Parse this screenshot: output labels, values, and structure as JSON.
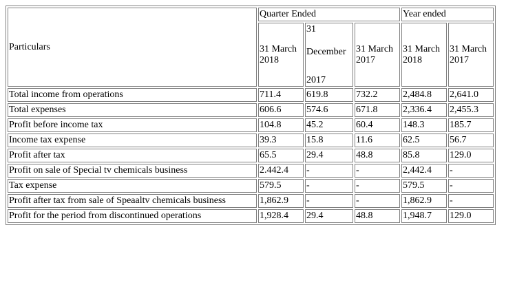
{
  "table": {
    "particulars_header": "Particulars",
    "group_headers": {
      "quarter": "Quarter Ended",
      "year": "Year ended"
    },
    "date_headers": {
      "q1": [
        "31 March",
        "2018"
      ],
      "q2": [
        "31",
        "December",
        "2017"
      ],
      "q3": [
        "31 March",
        "2017"
      ],
      "y1": [
        "31 March",
        "2018"
      ],
      "y2": [
        "31 March",
        "2017"
      ]
    },
    "rows": [
      {
        "label": "Total income from operations",
        "values": [
          "711.4",
          "619.8",
          "732.2",
          "2,484.8",
          "2,641.0"
        ]
      },
      {
        "label": "Total expenses",
        "values": [
          "606.6",
          "574.6",
          "671.8",
          "2,336.4",
          "2,455.3"
        ]
      },
      {
        "label": "Profit before income tax",
        "values": [
          "104.8",
          "45.2",
          "60.4",
          "148.3",
          "185.7"
        ]
      },
      {
        "label": "Income tax expense",
        "values": [
          "39.3",
          "15.8",
          "11.6",
          "62.5",
          "56.7"
        ]
      },
      {
        "label": "Profit after tax",
        "values": [
          "65.5",
          "29.4",
          "48.8",
          "85.8",
          "129.0"
        ]
      },
      {
        "label": "Profit on sale of Special tv chemicals business",
        "values": [
          "2.442.4",
          "-",
          "-",
          "2,442.4",
          "-"
        ]
      },
      {
        "label": "Tax expense",
        "values": [
          "579.5",
          "-",
          "-",
          "579.5",
          "-"
        ]
      },
      {
        "label": "Profit after tax from sale of Speaaltv chemicals business",
        "values": [
          "1,862.9",
          "-",
          "-",
          "1,862.9",
          "-"
        ]
      },
      {
        "label": "Profit for the period from discontinued operations",
        "values": [
          "1,928.4",
          "29.4",
          "48.8",
          "1,948.7",
          "129.0"
        ]
      }
    ]
  }
}
